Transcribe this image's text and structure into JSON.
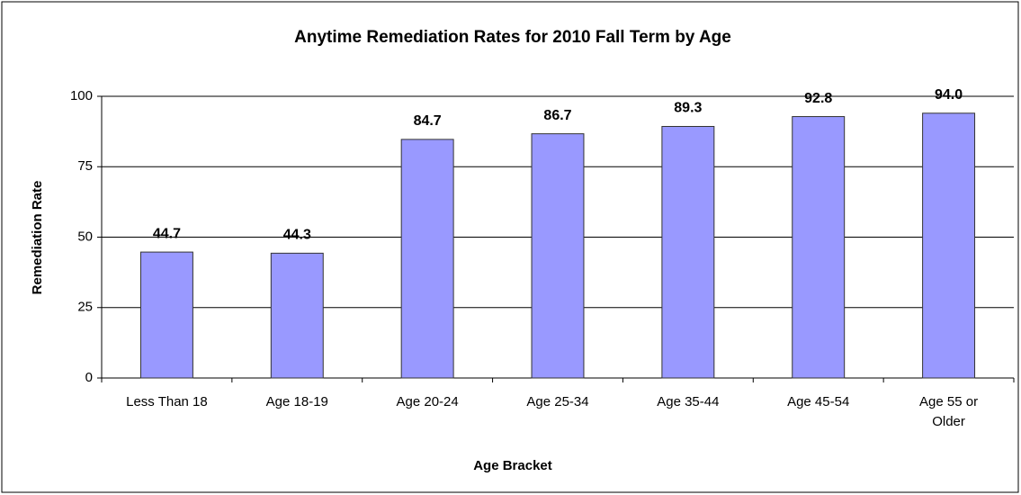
{
  "chart_data": {
    "type": "bar",
    "title": "Anytime Remediation Rates for 2010 Fall Term by Age",
    "x_label": "Age Bracket",
    "y_label": "Remediation Rate",
    "categories": [
      "Less Than 18",
      "Age 18-19",
      "Age 20-24",
      "Age 25-34",
      "Age 35-44",
      "Age 45-54",
      "Age 55 or Older"
    ],
    "values": [
      44.7,
      44.3,
      84.7,
      86.7,
      89.3,
      92.8,
      94.0
    ],
    "value_labels": [
      "44.7",
      "44.3",
      "84.7",
      "86.7",
      "89.3",
      "92.8",
      "94.0"
    ],
    "color": "#9999ff",
    "ylim": [
      0,
      100
    ],
    "yticks": [
      0,
      25,
      50,
      75,
      100
    ],
    "grid": true
  }
}
